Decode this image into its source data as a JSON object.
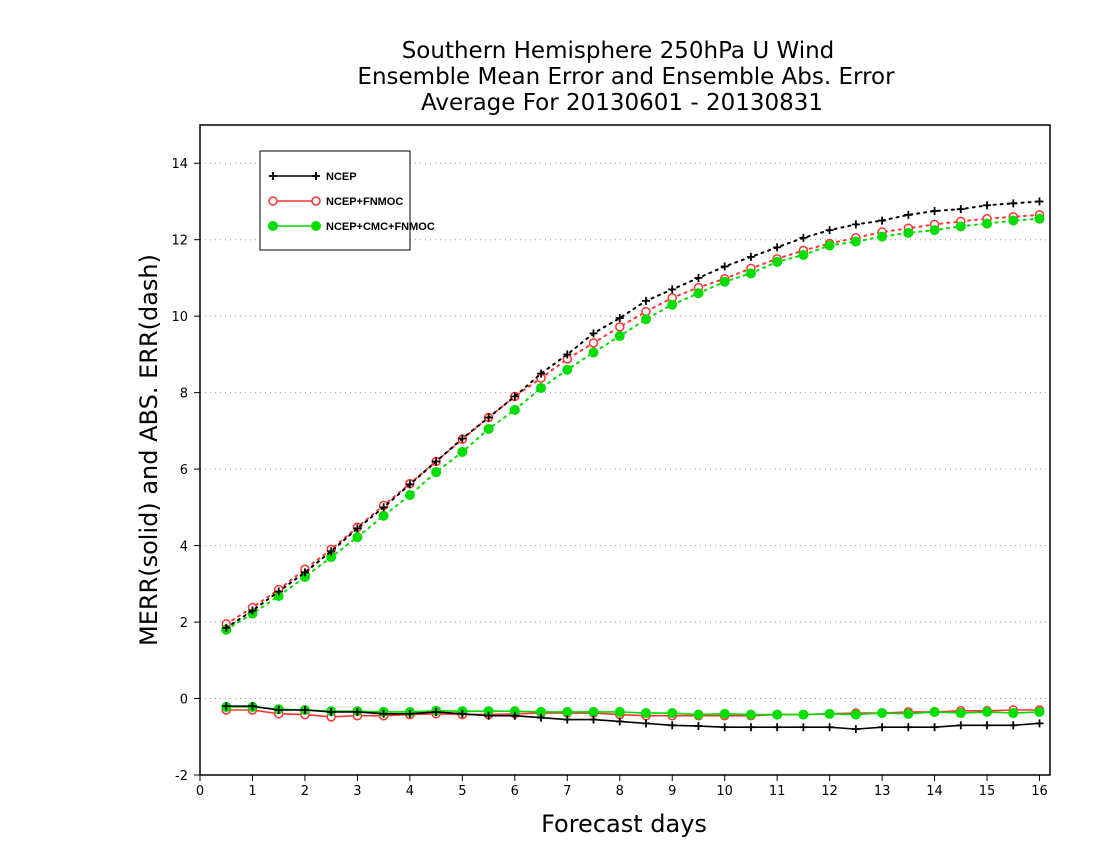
{
  "chart_data": {
    "type": "line",
    "title_lines": [
      "Southern Hemisphere 250hPa U Wind",
      "Ensemble Mean Error and Ensemble Abs. Error",
      "Average For 20130601 - 20130831"
    ],
    "xlabel": "Forecast days",
    "ylabel": "MERR(solid) and ABS. ERR(dash)",
    "xlim": [
      0,
      16.2
    ],
    "ylim": [
      -2,
      15
    ],
    "xticks": [
      0,
      1,
      2,
      3,
      4,
      5,
      6,
      7,
      8,
      9,
      10,
      11,
      12,
      13,
      14,
      15,
      16
    ],
    "yticks": [
      -2,
      0,
      2,
      4,
      6,
      8,
      10,
      12,
      14
    ],
    "grid": "horizontal dotted",
    "legend_position": "top-left",
    "x": [
      0.5,
      1,
      1.5,
      2,
      2.5,
      3,
      3.5,
      4,
      4.5,
      5,
      5.5,
      6,
      6.5,
      7,
      7.5,
      8,
      8.5,
      9,
      9.5,
      10,
      10.5,
      11,
      11.5,
      12,
      12.5,
      13,
      13.5,
      14,
      14.5,
      15,
      15.5,
      16
    ],
    "series": [
      {
        "name": "NCEP",
        "color": "#000000",
        "marker": "plus",
        "abs_err": [
          1.85,
          2.3,
          2.8,
          3.3,
          3.85,
          4.45,
          5.0,
          5.6,
          6.2,
          6.8,
          7.35,
          7.9,
          8.5,
          9.0,
          9.55,
          9.95,
          10.4,
          10.7,
          11.0,
          11.3,
          11.55,
          11.8,
          12.05,
          12.25,
          12.4,
          12.5,
          12.65,
          12.75,
          12.8,
          12.9,
          12.95,
          13.0
        ],
        "mean_err": [
          -0.2,
          -0.2,
          -0.3,
          -0.3,
          -0.35,
          -0.35,
          -0.4,
          -0.4,
          -0.35,
          -0.4,
          -0.45,
          -0.45,
          -0.5,
          -0.55,
          -0.55,
          -0.6,
          -0.65,
          -0.7,
          -0.72,
          -0.75,
          -0.75,
          -0.75,
          -0.75,
          -0.75,
          -0.8,
          -0.75,
          -0.75,
          -0.75,
          -0.7,
          -0.7,
          -0.7,
          -0.65
        ]
      },
      {
        "name": "NCEP+FNMOC",
        "color": "#ff3333",
        "marker": "open-circle",
        "abs_err": [
          1.95,
          2.38,
          2.85,
          3.38,
          3.9,
          4.48,
          5.05,
          5.62,
          6.2,
          6.78,
          7.35,
          7.9,
          8.38,
          8.88,
          9.3,
          9.72,
          10.12,
          10.48,
          10.75,
          10.98,
          11.25,
          11.5,
          11.72,
          11.9,
          12.05,
          12.2,
          12.3,
          12.4,
          12.48,
          12.55,
          12.6,
          12.65
        ],
        "mean_err": [
          -0.3,
          -0.3,
          -0.4,
          -0.42,
          -0.48,
          -0.45,
          -0.45,
          -0.42,
          -0.4,
          -0.42,
          -0.42,
          -0.4,
          -0.38,
          -0.38,
          -0.38,
          -0.42,
          -0.45,
          -0.45,
          -0.45,
          -0.45,
          -0.45,
          -0.42,
          -0.42,
          -0.4,
          -0.38,
          -0.38,
          -0.35,
          -0.35,
          -0.32,
          -0.32,
          -0.3,
          -0.3
        ]
      },
      {
        "name": "NCEP+CMC+FNMOC",
        "color": "#00dd00",
        "marker": "filled-circle",
        "abs_err": [
          1.8,
          2.22,
          2.68,
          3.18,
          3.7,
          4.22,
          4.78,
          5.32,
          5.92,
          6.45,
          7.05,
          7.55,
          8.12,
          8.6,
          9.05,
          9.48,
          9.92,
          10.3,
          10.6,
          10.9,
          11.12,
          11.42,
          11.6,
          11.85,
          11.95,
          12.08,
          12.18,
          12.25,
          12.35,
          12.42,
          12.5,
          12.55
        ],
        "mean_err": [
          -0.22,
          -0.22,
          -0.28,
          -0.3,
          -0.33,
          -0.33,
          -0.35,
          -0.35,
          -0.32,
          -0.33,
          -0.33,
          -0.33,
          -0.35,
          -0.35,
          -0.35,
          -0.35,
          -0.38,
          -0.38,
          -0.42,
          -0.4,
          -0.42,
          -0.42,
          -0.42,
          -0.4,
          -0.42,
          -0.38,
          -0.4,
          -0.35,
          -0.38,
          -0.35,
          -0.38,
          -0.35
        ]
      }
    ]
  }
}
